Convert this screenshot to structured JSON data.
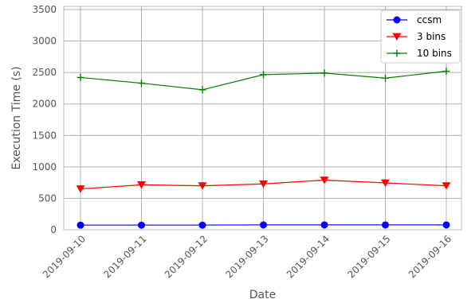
{
  "chart_data": {
    "type": "line",
    "categories": [
      "2019-09-10",
      "2019-09-11",
      "2019-09-12",
      "2019-09-13",
      "2019-09-14",
      "2019-09-15",
      "2019-09-16"
    ],
    "xlabel": "Date",
    "ylabel": "Execution Time (s)",
    "ylim": [
      0,
      3550
    ],
    "yticks": [
      0,
      500,
      1000,
      1500,
      2000,
      2500,
      3000,
      3500
    ],
    "grid": true,
    "legend_position": "top-right",
    "series": [
      {
        "name": "ccsm",
        "color": "#0000ff",
        "marker": "circle",
        "values": [
          75,
          75,
          75,
          78,
          78,
          78,
          78
        ]
      },
      {
        "name": "3 bins",
        "color": "#ff0000",
        "marker": "triangle-down",
        "values": [
          650,
          715,
          700,
          730,
          790,
          745,
          700
        ]
      },
      {
        "name": "10 bins",
        "color": "#008000",
        "marker": "plus",
        "values": [
          2420,
          2330,
          2225,
          2465,
          2490,
          2410,
          2520
        ]
      }
    ]
  }
}
